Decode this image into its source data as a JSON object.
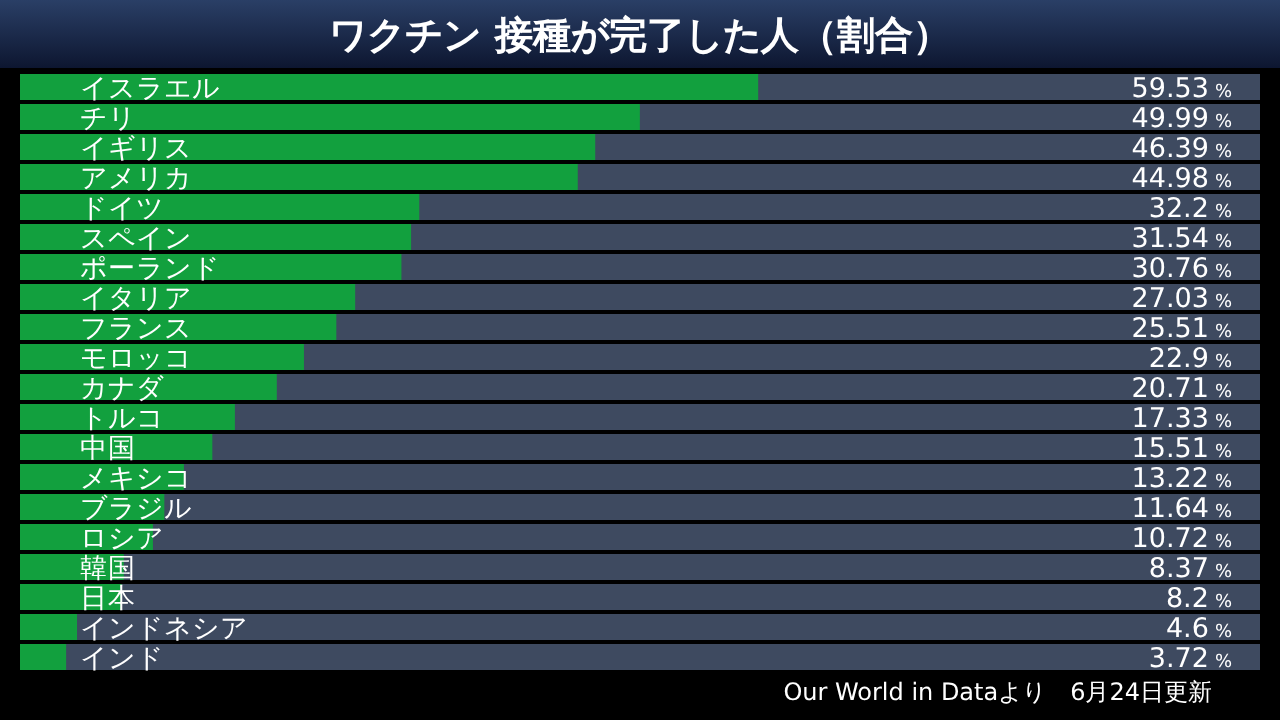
{
  "chart_data": {
    "type": "bar",
    "orientation": "horizontal",
    "title": "ワクチン 接種が完了した人（割合）",
    "categories": [
      "イスラエル",
      "チリ",
      "イギリス",
      "アメリカ",
      "ドイツ",
      "スペイン",
      "ポーランド",
      "イタリア",
      "フランス",
      "モロッコ",
      "カナダ",
      "トルコ",
      "中国",
      "メキシコ",
      "ブラジル",
      "ロシア",
      "韓国",
      "日本",
      "インドネシア",
      "インド"
    ],
    "values": [
      59.53,
      49.99,
      46.39,
      44.98,
      32.2,
      31.54,
      30.76,
      27.03,
      25.51,
      22.9,
      20.71,
      17.33,
      15.51,
      13.22,
      11.64,
      10.72,
      8.37,
      8.2,
      4.6,
      3.72
    ],
    "value_labels": [
      "59.53%",
      "49.99%",
      "46.39%",
      "44.98%",
      "32.2%",
      "31.54%",
      "30.76%",
      "27.03%",
      "25.51%",
      "22.9%",
      "20.71%",
      "17.33%",
      "15.51%",
      "13.22%",
      "11.64%",
      "10.72%",
      "8.37%",
      "8.2%",
      "4.6%",
      "3.72%"
    ],
    "color": "#12a03e",
    "xlim": [
      0,
      100
    ],
    "annotations": [
      "Our World in Dataより　6月24日更新"
    ]
  }
}
